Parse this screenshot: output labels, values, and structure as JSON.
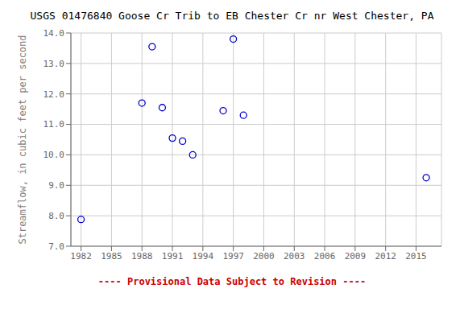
{
  "chart_data": {
    "type": "scatter",
    "title": "USGS 01476840 Goose Cr Trib to EB Chester Cr nr West Chester, PA",
    "y_label": "Streamflow, in cubic feet per second",
    "x": [
      1982,
      1988,
      1989,
      1990,
      1991,
      1992,
      1993,
      1996,
      1997,
      1998,
      2016
    ],
    "values": [
      7.88,
      11.7,
      13.55,
      11.55,
      10.55,
      10.45,
      10.0,
      11.45,
      13.8,
      11.3,
      9.25
    ],
    "color": "#0000CC",
    "marker": "open_circle",
    "xlim": [
      1981,
      2017.5
    ],
    "ylim": [
      7.0,
      14.0
    ],
    "xticks": [
      1982,
      1985,
      1988,
      1991,
      1994,
      1997,
      2000,
      2003,
      2006,
      2009,
      2012,
      2015
    ],
    "yticks": [
      {
        "value": 7,
        "label": "7.0"
      },
      {
        "value": 8,
        "label": "8.0"
      },
      {
        "value": 9,
        "label": "9.0"
      },
      {
        "value": 10,
        "label": "10.0"
      },
      {
        "value": 11,
        "label": "11.0"
      },
      {
        "value": 12,
        "label": "12.0"
      },
      {
        "value": 13,
        "label": "13.0"
      },
      {
        "value": 14,
        "label": "14.0"
      }
    ],
    "grid": true,
    "annotations": [
      {
        "text": "---- Provisional Data Subject to Revision ----",
        "color": "#cc0000"
      }
    ]
  }
}
